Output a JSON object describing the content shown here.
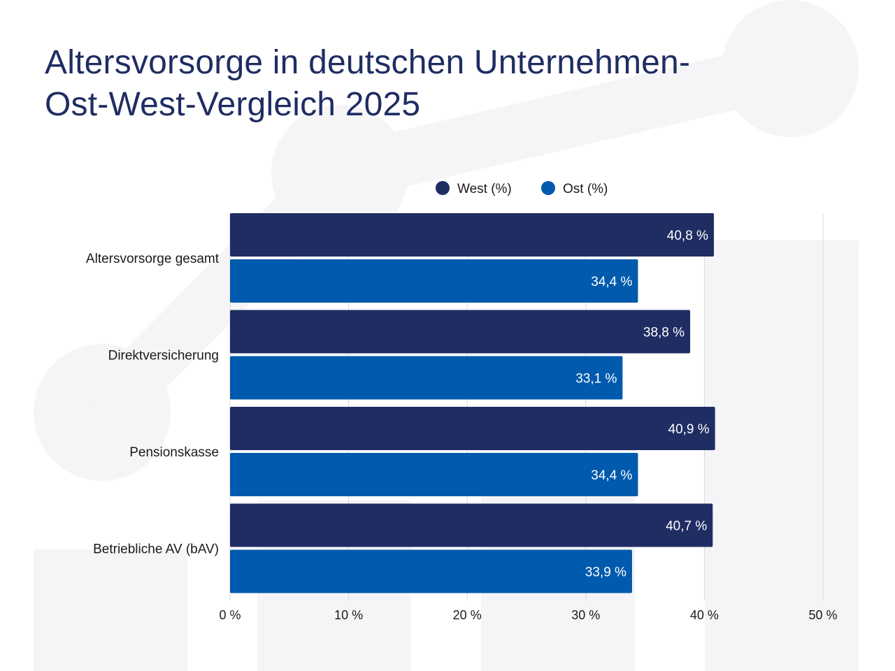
{
  "title": {
    "line1": "Altersvorsorge in deutschen Unternehmen-",
    "line2": "Ost-West-Vergleich 2025"
  },
  "colors": {
    "west": "#1f2d63",
    "ost": "#005aad",
    "title": "#1f2d63",
    "grid": "#d9d9d9",
    "text": "#1a1a1a",
    "label_in_bar": "#ffffff",
    "background_shapes": "#f5f5f7"
  },
  "chart_data": {
    "type": "bar",
    "orientation": "horizontal",
    "title": "Altersvorsorge in deutschen Unternehmen- Ost-West-Vergleich 2025",
    "categories": [
      "Altersvorsorge gesamt",
      "Direktversicherung",
      "Pensionskasse",
      "Betriebliche AV (bAV)"
    ],
    "series": [
      {
        "name": "West (%)",
        "values": [
          40.8,
          38.8,
          40.9,
          40.7
        ],
        "labels": [
          "40,8 %",
          "38,8 %",
          "40,9 %",
          "40,7 %"
        ]
      },
      {
        "name": "Ost (%)",
        "values": [
          34.4,
          33.1,
          34.4,
          33.9
        ],
        "labels": [
          "34,4 %",
          "33,1 %",
          "34,4 %",
          "33,9 %"
        ]
      }
    ],
    "xlim": [
      0,
      50
    ],
    "xticks": [
      0,
      10,
      20,
      30,
      40,
      50
    ],
    "xtick_labels": [
      "0 %",
      "10 %",
      "20 %",
      "30 %",
      "40 %",
      "50 %"
    ],
    "xlabel": "",
    "ylabel": "",
    "grid": true,
    "legend_position": "top-center"
  }
}
